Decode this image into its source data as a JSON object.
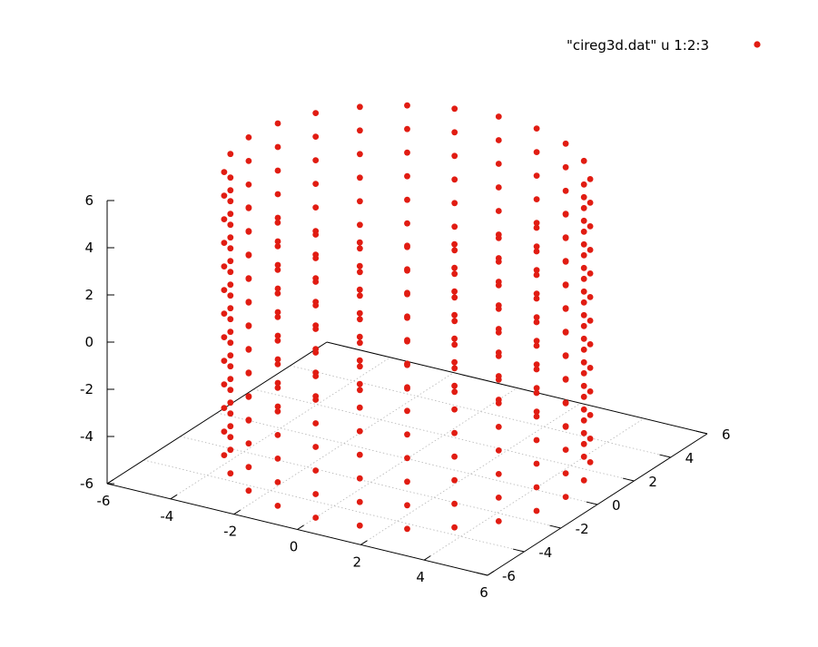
{
  "chart_data": {
    "type": "scatter",
    "subtype": "3d-scatter",
    "title": "",
    "xlabel": "",
    "ylabel": "",
    "zlabel": "",
    "legend": {
      "position": "top-right",
      "entries": [
        {
          "label": "\"cireg3d.dat\" u 1:2:3",
          "color": "#e11c12",
          "marker": "circle"
        }
      ]
    },
    "xlim": [
      -6,
      6
    ],
    "ylim": [
      -6,
      6
    ],
    "zlim": [
      -6,
      6
    ],
    "x_ticks": [
      "-6",
      "-4",
      "-2",
      "0",
      "2",
      "4",
      "6"
    ],
    "y_ticks": [
      "-6",
      "-4",
      "-2",
      "0",
      "2",
      "4",
      "6"
    ],
    "z_ticks": [
      "6",
      "4",
      "2",
      "0",
      "-2",
      "-4",
      "-6"
    ],
    "base_grid": true,
    "grid_lines": [
      -4,
      -2,
      0,
      2,
      4
    ],
    "series": [
      {
        "name": "\"cireg3d.dat\" u 1:2:3",
        "color": "#e11c12",
        "description": "regular grid of points on a cylinder surface of radius 5 around the z axis",
        "radius": 5,
        "angles_deg_step": 15,
        "z_values": [
          -6,
          -5,
          -4,
          -3,
          -2,
          -1,
          0,
          1,
          2,
          3,
          4,
          5,
          6
        ]
      }
    ]
  }
}
